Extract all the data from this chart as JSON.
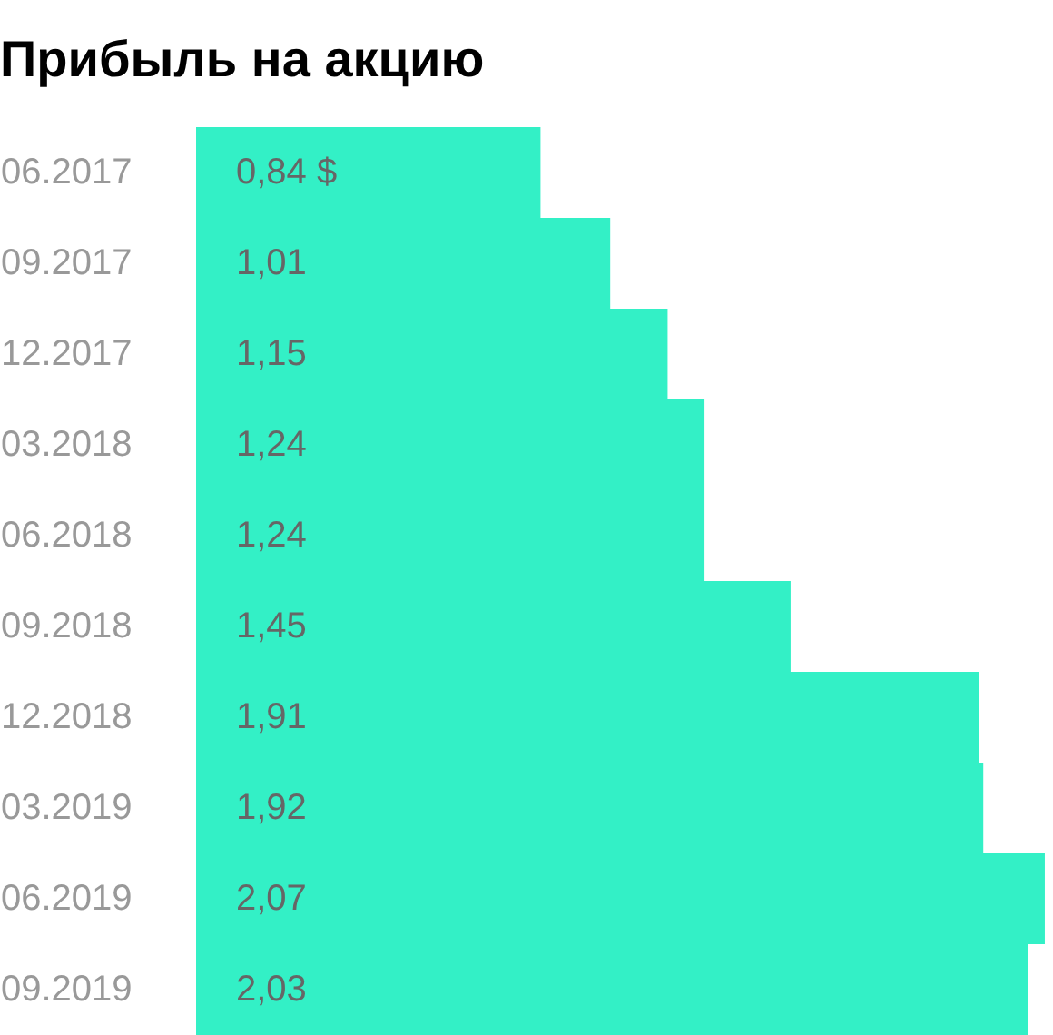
{
  "chart_data": {
    "type": "bar",
    "orientation": "horizontal",
    "title": "Прибыль на акцию",
    "categories": [
      "06.2017",
      "09.2017",
      "12.2017",
      "03.2018",
      "06.2018",
      "09.2018",
      "12.2018",
      "03.2019",
      "06.2019",
      "09.2019"
    ],
    "values": [
      0.84,
      1.01,
      1.15,
      1.24,
      1.24,
      1.45,
      1.91,
      1.92,
      2.07,
      2.03
    ],
    "value_labels": [
      "0,84 $",
      "1,01",
      "1,15",
      "1,24",
      "1,24",
      "1,45",
      "1,91",
      "1,92",
      "2,07",
      "2,03"
    ],
    "color": "#33f0c6",
    "xlim": [
      0,
      2.09
    ]
  }
}
